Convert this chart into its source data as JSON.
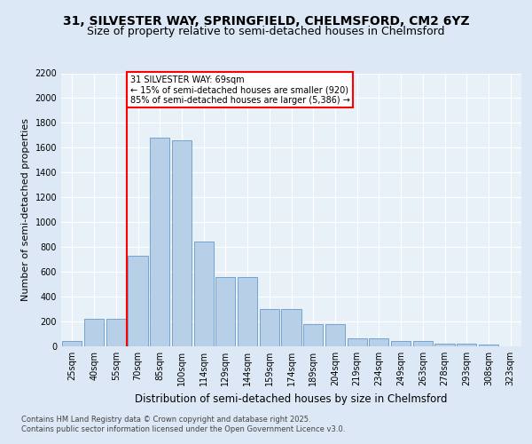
{
  "title1": "31, SILVESTER WAY, SPRINGFIELD, CHELMSFORD, CM2 6YZ",
  "title2": "Size of property relative to semi-detached houses in Chelmsford",
  "xlabel": "Distribution of semi-detached houses by size in Chelmsford",
  "ylabel": "Number of semi-detached properties",
  "categories": [
    "25sqm",
    "40sqm",
    "55sqm",
    "70sqm",
    "85sqm",
    "100sqm",
    "114sqm",
    "129sqm",
    "144sqm",
    "159sqm",
    "174sqm",
    "189sqm",
    "204sqm",
    "219sqm",
    "234sqm",
    "249sqm",
    "263sqm",
    "278sqm",
    "293sqm",
    "308sqm",
    "323sqm"
  ],
  "values": [
    45,
    225,
    225,
    730,
    1680,
    1660,
    845,
    560,
    555,
    300,
    300,
    180,
    180,
    65,
    65,
    40,
    40,
    25,
    25,
    15,
    0
  ],
  "bar_color": "#b8cfe8",
  "bar_edge_color": "#6699cc",
  "vline_color": "red",
  "annotation_text": "31 SILVESTER WAY: 69sqm\n← 15% of semi-detached houses are smaller (920)\n85% of semi-detached houses are larger (5,386) →",
  "annotation_box_color": "white",
  "annotation_box_edge": "red",
  "ylim": [
    0,
    2200
  ],
  "yticks": [
    0,
    200,
    400,
    600,
    800,
    1000,
    1200,
    1400,
    1600,
    1800,
    2000,
    2200
  ],
  "bg_color": "#dce8f5",
  "plot_bg_color": "#e8f0f8",
  "footer1": "Contains HM Land Registry data © Crown copyright and database right 2025.",
  "footer2": "Contains public sector information licensed under the Open Government Licence v3.0.",
  "title_fontsize": 10,
  "subtitle_fontsize": 9,
  "tick_fontsize": 7,
  "label_fontsize": 8.5,
  "footer_fontsize": 6,
  "ylabel_fontsize": 8
}
